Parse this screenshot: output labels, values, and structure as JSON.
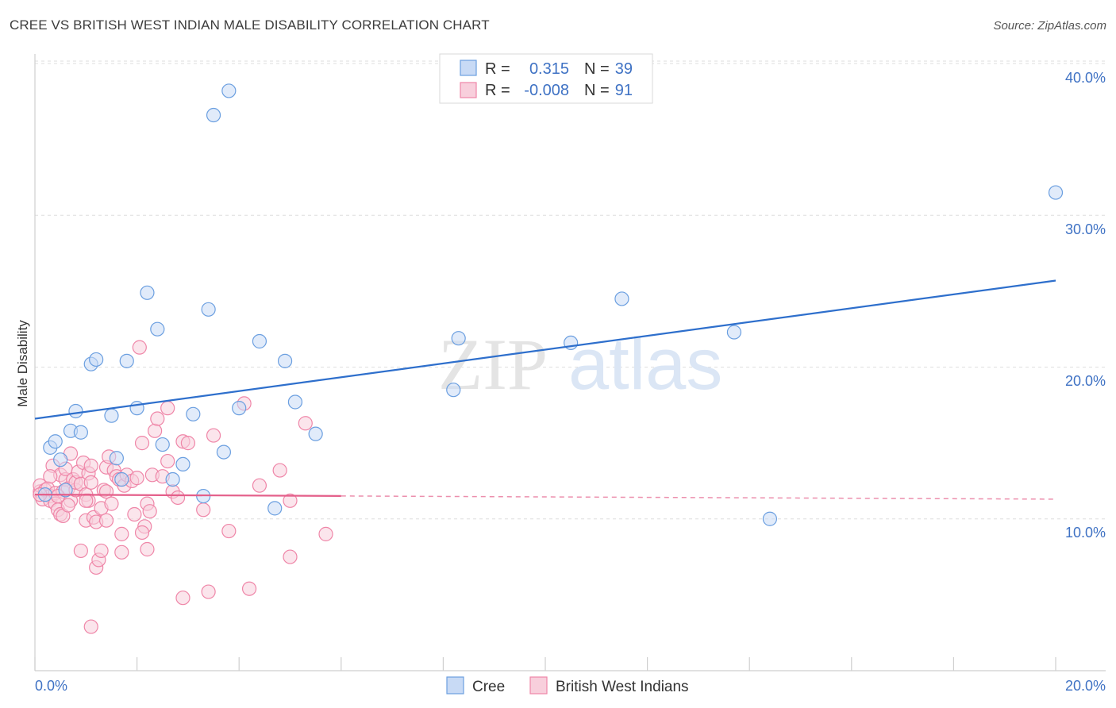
{
  "title": "CREE VS BRITISH WEST INDIAN MALE DISABILITY CORRELATION CHART",
  "source": "Source: ZipAtlas.com",
  "watermark": {
    "zip": "ZIP",
    "atlas": "atlas"
  },
  "colors": {
    "cree": "#6b9fe0",
    "cree_fill": "#c8daf5",
    "cree_line": "#2e6fcc",
    "bwi": "#ef86a8",
    "bwi_fill": "#f8cfdc",
    "bwi_line": "#e45f8a",
    "grid": "#dedede",
    "tick_text": "#3f72c4"
  },
  "chart_data": {
    "type": "scatter",
    "title": "CREE VS BRITISH WEST INDIAN MALE DISABILITY CORRELATION CHART",
    "ylabel": "Male Disability",
    "xlabel": "",
    "xlim": [
      0,
      20
    ],
    "ylim": [
      0,
      40
    ],
    "x_tick_labels": {
      "left": "0.0%",
      "right": "20.0%"
    },
    "y_ticks": [
      {
        "value": 10,
        "label": "10.0%"
      },
      {
        "value": 20,
        "label": "20.0%"
      },
      {
        "value": 30,
        "label": "30.0%"
      },
      {
        "value": 40,
        "label": "40.0%"
      }
    ],
    "legend": {
      "rows": [
        {
          "r_label": "R =",
          "r_value": "0.315",
          "n_label": "N =",
          "n_value": "39"
        },
        {
          "r_label": "R =",
          "r_value": "-0.008",
          "n_label": "N =",
          "n_value": "91"
        }
      ]
    },
    "series": [
      {
        "name": "Cree",
        "r": 0.315,
        "n": 39,
        "trend": {
          "x": [
            0,
            20
          ],
          "y": [
            16.6,
            25.7
          ],
          "style": "solid"
        },
        "points": [
          [
            0.2,
            11.6
          ],
          [
            0.3,
            14.7
          ],
          [
            0.4,
            15.1
          ],
          [
            0.5,
            13.9
          ],
          [
            0.6,
            11.9
          ],
          [
            0.7,
            15.8
          ],
          [
            0.8,
            17.1
          ],
          [
            0.9,
            15.7
          ],
          [
            1.1,
            20.2
          ],
          [
            1.2,
            20.5
          ],
          [
            1.5,
            16.8
          ],
          [
            1.6,
            14.0
          ],
          [
            1.7,
            12.6
          ],
          [
            1.8,
            20.4
          ],
          [
            2.0,
            17.3
          ],
          [
            2.2,
            24.9
          ],
          [
            2.4,
            22.5
          ],
          [
            2.5,
            14.9
          ],
          [
            2.7,
            12.6
          ],
          [
            2.9,
            13.6
          ],
          [
            3.1,
            16.9
          ],
          [
            3.3,
            11.5
          ],
          [
            3.5,
            36.6
          ],
          [
            3.8,
            38.2
          ],
          [
            3.7,
            14.4
          ],
          [
            3.4,
            23.8
          ],
          [
            4.0,
            17.3
          ],
          [
            4.4,
            21.7
          ],
          [
            4.7,
            10.7
          ],
          [
            4.9,
            20.4
          ],
          [
            5.1,
            17.7
          ],
          [
            5.5,
            15.6
          ],
          [
            8.2,
            18.5
          ],
          [
            8.3,
            21.9
          ],
          [
            10.5,
            21.6
          ],
          [
            11.5,
            24.5
          ],
          [
            13.7,
            22.3
          ],
          [
            14.4,
            10.0
          ],
          [
            20.0,
            31.5
          ]
        ]
      },
      {
        "name": "British West Indians",
        "r": -0.008,
        "n": 91,
        "trend": {
          "x": [
            0,
            20
          ],
          "y": [
            11.6,
            11.3
          ],
          "solid_until_x": 6.0,
          "style": "solid-then-dashed"
        },
        "points": [
          [
            0.1,
            11.8
          ],
          [
            0.1,
            12.2
          ],
          [
            0.15,
            11.3
          ],
          [
            0.2,
            11.9
          ],
          [
            0.25,
            12.0
          ],
          [
            0.3,
            11.5
          ],
          [
            0.3,
            11.2
          ],
          [
            0.35,
            13.5
          ],
          [
            0.4,
            11.7
          ],
          [
            0.4,
            11.0
          ],
          [
            0.45,
            10.6
          ],
          [
            0.5,
            12.9
          ],
          [
            0.5,
            10.3
          ],
          [
            0.55,
            11.8
          ],
          [
            0.6,
            12.6
          ],
          [
            0.6,
            13.3
          ],
          [
            0.65,
            12.0
          ],
          [
            0.7,
            11.2
          ],
          [
            0.7,
            14.3
          ],
          [
            0.75,
            12.6
          ],
          [
            0.8,
            11.9
          ],
          [
            0.8,
            12.4
          ],
          [
            0.85,
            13.1
          ],
          [
            0.9,
            12.3
          ],
          [
            0.95,
            13.7
          ],
          [
            1.0,
            11.6
          ],
          [
            1.0,
            9.9
          ],
          [
            1.05,
            11.2
          ],
          [
            1.05,
            13.0
          ],
          [
            1.1,
            12.4
          ],
          [
            1.1,
            13.5
          ],
          [
            1.15,
            10.1
          ],
          [
            1.2,
            9.8
          ],
          [
            1.2,
            6.8
          ],
          [
            1.25,
            7.3
          ],
          [
            1.3,
            10.7
          ],
          [
            1.3,
            7.9
          ],
          [
            1.35,
            11.9
          ],
          [
            1.4,
            11.8
          ],
          [
            1.4,
            13.4
          ],
          [
            1.45,
            14.1
          ],
          [
            1.5,
            11.0
          ],
          [
            1.55,
            13.2
          ],
          [
            1.6,
            12.8
          ],
          [
            1.65,
            12.6
          ],
          [
            1.7,
            7.8
          ],
          [
            1.75,
            12.2
          ],
          [
            1.8,
            12.9
          ],
          [
            1.9,
            12.5
          ],
          [
            1.95,
            10.3
          ],
          [
            2.0,
            12.7
          ],
          [
            2.05,
            21.3
          ],
          [
            2.1,
            15.0
          ],
          [
            2.15,
            9.5
          ],
          [
            2.2,
            11.0
          ],
          [
            2.25,
            10.5
          ],
          [
            2.3,
            12.9
          ],
          [
            2.35,
            15.8
          ],
          [
            2.4,
            16.6
          ],
          [
            2.5,
            12.8
          ],
          [
            2.6,
            13.8
          ],
          [
            2.7,
            11.8
          ],
          [
            2.8,
            11.4
          ],
          [
            2.9,
            15.1
          ],
          [
            3.0,
            15.0
          ],
          [
            3.3,
            10.6
          ],
          [
            3.5,
            15.5
          ],
          [
            3.8,
            9.2
          ],
          [
            4.1,
            17.6
          ],
          [
            4.4,
            12.2
          ],
          [
            4.8,
            13.2
          ],
          [
            5.0,
            11.2
          ],
          [
            5.3,
            16.3
          ],
          [
            5.7,
            9.0
          ],
          [
            0.9,
            7.9
          ],
          [
            1.1,
            2.9
          ],
          [
            1.7,
            9.0
          ],
          [
            2.1,
            9.1
          ],
          [
            2.2,
            8.0
          ],
          [
            2.9,
            4.8
          ],
          [
            3.4,
            5.2
          ],
          [
            4.2,
            5.4
          ],
          [
            5.0,
            7.5
          ],
          [
            2.6,
            17.3
          ],
          [
            0.55,
            10.2
          ],
          [
            1.0,
            11.2
          ],
          [
            1.4,
            9.9
          ],
          [
            0.3,
            12.8
          ],
          [
            0.45,
            11.5
          ],
          [
            0.65,
            10.9
          ],
          [
            0.1,
            11.6
          ]
        ]
      }
    ]
  },
  "bottom_legend": [
    {
      "label": "Cree"
    },
    {
      "label": "British West Indians"
    }
  ]
}
